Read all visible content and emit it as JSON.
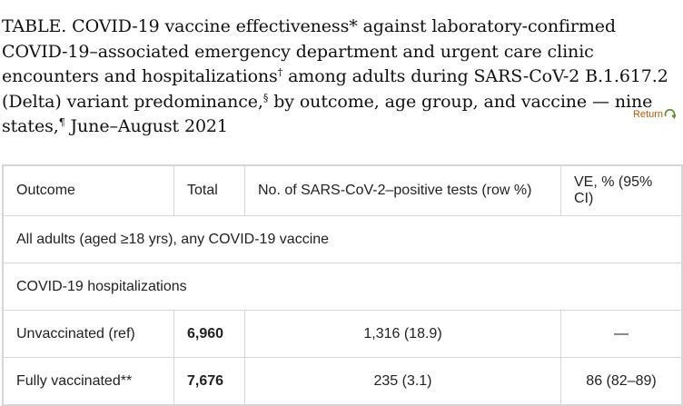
{
  "caption": {
    "part1": "TABLE. COVID-19 vaccine effectiveness* against laboratory-confirmed COVID-19–associated emergency department and urgent care clinic encounters and hospitalizations",
    "mark1": "†",
    "part2": " among adults during SARS-CoV-2 B.1.617.2 (Delta) variant predominance,",
    "mark2": "§",
    "part3": " by outcome, age group, and vaccine — nine states,",
    "mark3": "¶",
    "part4": " June–August 2021"
  },
  "return_link": {
    "label": "Return",
    "icon": "return-arrow-icon",
    "color": "#c25400"
  },
  "table": {
    "headers": [
      "Outcome",
      "Total",
      "No. of SARS-CoV-2–positive tests (row %)",
      "VE, % (95% CI)"
    ],
    "section_rows": [
      "All adults (aged ≥18 yrs), any COVID-19 vaccine",
      "COVID-19 hospitalizations"
    ],
    "rows": [
      {
        "outcome": "Unvaccinated (ref)",
        "total": "6,960",
        "positive": "1,316 (18.9)",
        "ve": "—"
      },
      {
        "outcome": "Fully vaccinated**",
        "total": "7,676",
        "positive": "235 (3.1)",
        "ve": "86 (82–89)"
      }
    ]
  }
}
